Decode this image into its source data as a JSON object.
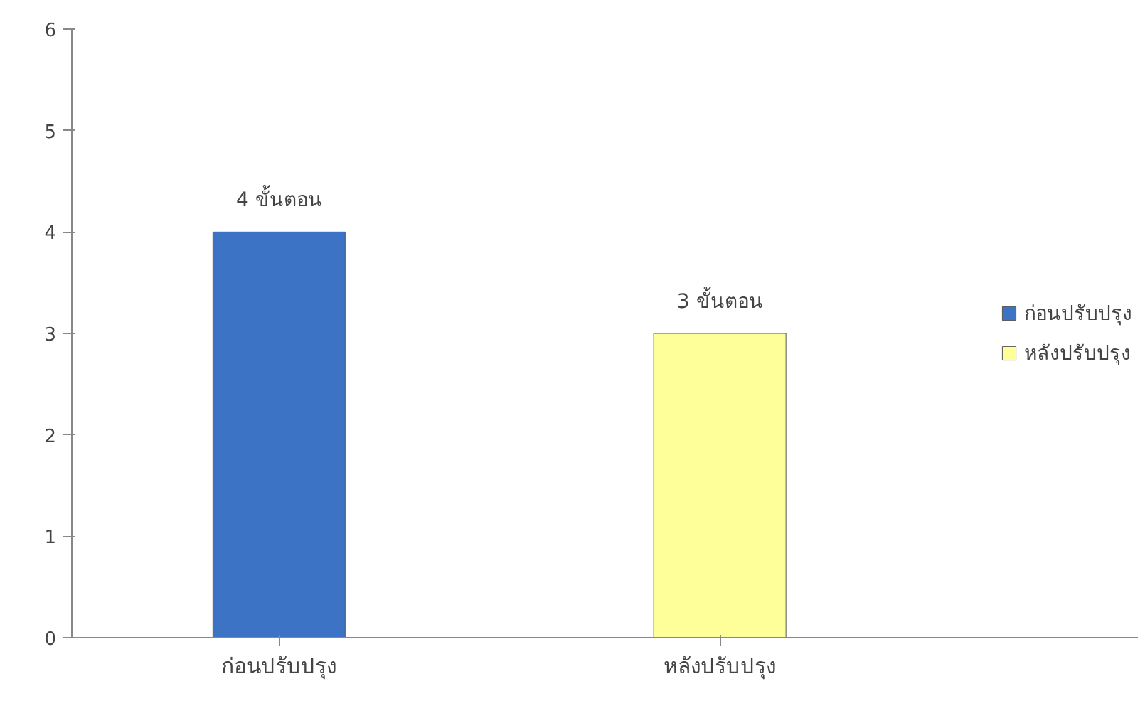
{
  "chart_data": {
    "type": "bar",
    "categories": [
      "ก่อนปรับปรุง",
      "หลังปรับปรุง"
    ],
    "series": [
      {
        "name": "ก่อนปรับปรุง",
        "color": "#3d73c4",
        "values": [
          4,
          null
        ],
        "value_labels": [
          "4 ขั้นตอน",
          null
        ]
      },
      {
        "name": "หลังปรับปรุง",
        "color": "#ffff99",
        "values": [
          null,
          3
        ],
        "value_labels": [
          null,
          "3 ขั้นตอน"
        ]
      }
    ],
    "ylim": [
      0,
      6
    ],
    "yticks": [
      0,
      1,
      2,
      3,
      4,
      5,
      6
    ],
    "grid": false,
    "legend": "right"
  }
}
